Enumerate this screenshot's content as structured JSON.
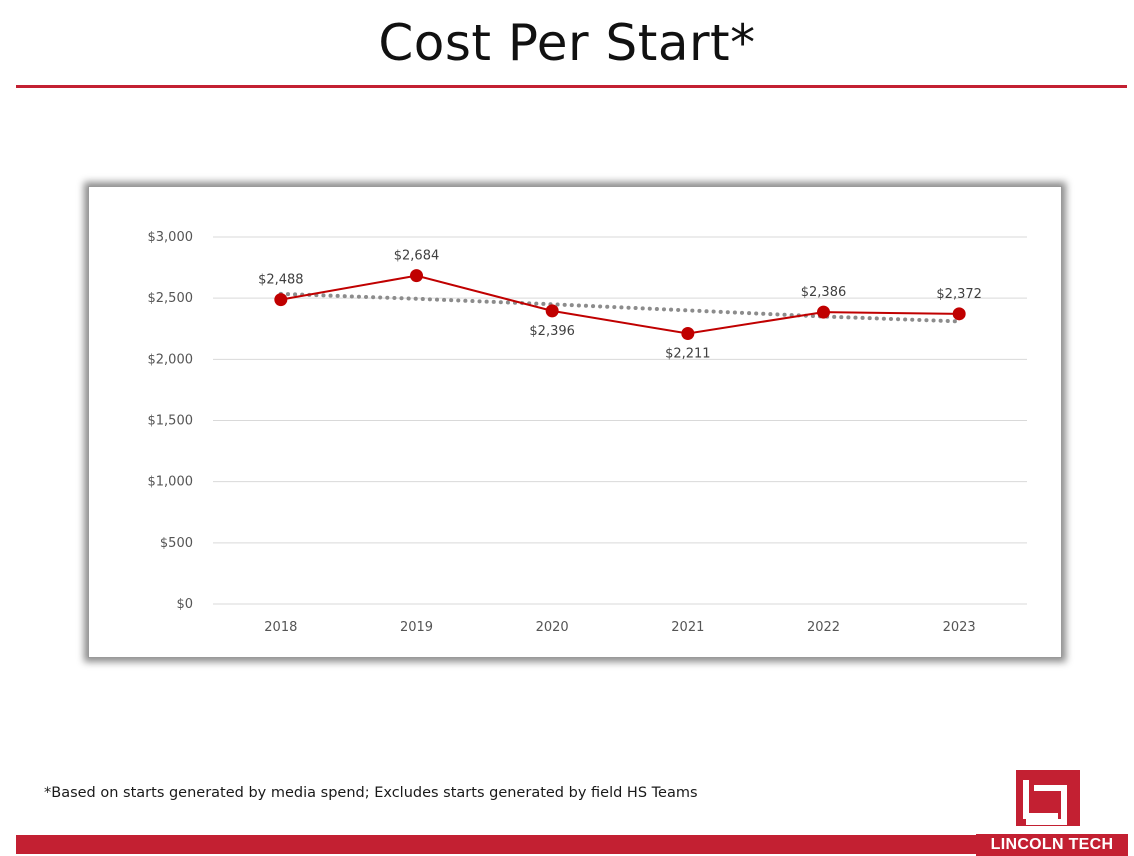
{
  "page": {
    "title": "Cost Per Start*",
    "footnote": "*Based on starts generated by media spend; Excludes starts generated by field HS Teams",
    "brand_name": "LINCOLN TECH",
    "accent_color": "#c32032"
  },
  "chart_data": {
    "type": "line",
    "title": "",
    "xlabel": "",
    "ylabel": "",
    "categories": [
      "2018",
      "2019",
      "2020",
      "2021",
      "2022",
      "2023"
    ],
    "series": [
      {
        "name": "Cost Per Start",
        "values": [
          2488,
          2684,
          2396,
          2211,
          2386,
          2372
        ],
        "data_labels": [
          "$2,488",
          "$2,684",
          "$2,396",
          "$2,211",
          "$2,386",
          "$2,372"
        ],
        "color": "#c00000"
      },
      {
        "name": "Trendline",
        "style": "dotted",
        "values": [
          2535,
          2495,
          2450,
          2400,
          2350,
          2310
        ],
        "color": "#8c8c8c"
      }
    ],
    "yticks": [
      0,
      500,
      1000,
      1500,
      2000,
      2500,
      3000
    ],
    "ytick_labels": [
      "$0",
      "$500",
      "$1,000",
      "$1,500",
      "$2,000",
      "$2,500",
      "$3,000"
    ],
    "ylim": [
      0,
      3000
    ],
    "grid": true,
    "legend": "none"
  }
}
